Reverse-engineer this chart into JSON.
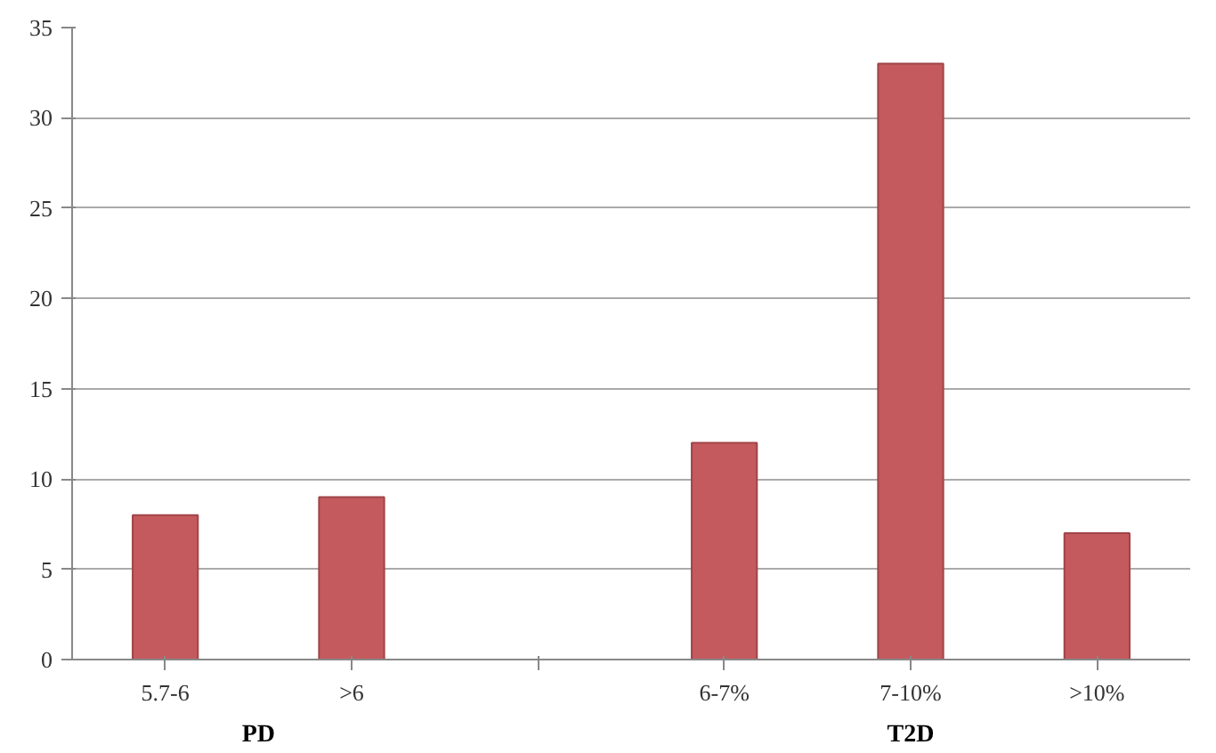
{
  "chart_data": {
    "type": "bar",
    "categories": [
      "5.7-6",
      ">6",
      null,
      "6-7%",
      "7-10%",
      ">10%"
    ],
    "values": [
      8,
      9,
      null,
      12,
      33,
      7
    ],
    "color": "#c45a5e",
    "ylim": [
      0,
      35
    ],
    "yticks": [
      0,
      5,
      10,
      15,
      20,
      25,
      30,
      35
    ],
    "grid": "y",
    "annotations": [
      "PD",
      "T2D"
    ]
  }
}
